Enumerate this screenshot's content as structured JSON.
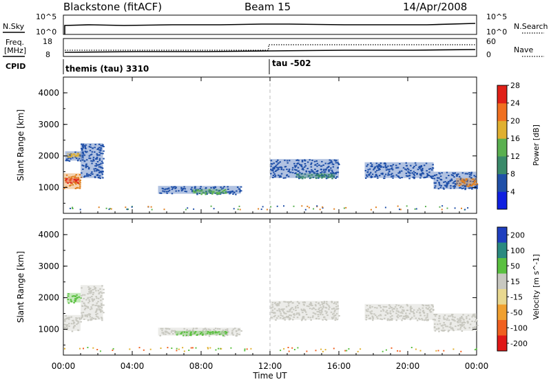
{
  "header": {
    "station": "Blackstone (fitACF)",
    "beam": "Beam 15",
    "date": "14/Apr/2008"
  },
  "status_panels": {
    "nsky_label": "N.Sky",
    "nsky_ticks": [
      "10^5",
      "10^0"
    ],
    "nsearch_label": "N.Search",
    "nsearch_ticks": [
      "10^5",
      "10^0"
    ],
    "freq_label_1": "Freq.",
    "freq_label_2": "[MHz]",
    "freq_ticks": [
      "18",
      "8"
    ],
    "nave_label": "Nave",
    "nave_ticks": [
      "60",
      "0"
    ],
    "cpid_label": "CPID",
    "cpid_segments": [
      {
        "text": "themis (tau) 3310",
        "start": 0
      },
      {
        "text": "tau -502",
        "start": 12
      }
    ]
  },
  "chart_data": [
    {
      "type": "heatmap",
      "name": "power-panel",
      "xlabel": "",
      "ylabel": "Slant Range [km]",
      "xlim": [
        0,
        24
      ],
      "ylim": [
        180,
        4500
      ],
      "yticks": [
        "1000",
        "2000",
        "3000",
        "4000"
      ],
      "colorbar": {
        "label": "Power [dB]",
        "ticks": [
          "4",
          "8",
          "12",
          "16",
          "20",
          "24",
          "28"
        ],
        "colors": [
          "#1020e0",
          "#2050a8",
          "#3a8a6a",
          "#5ab050",
          "#e0b030",
          "#f07020",
          "#e02018"
        ]
      },
      "regions": [
        {
          "t": [
            0.0,
            1.0
          ],
          "r": [
            950,
            1450
          ],
          "color": "#e08020"
        },
        {
          "t": [
            0.1,
            0.9
          ],
          "r": [
            1150,
            1300
          ],
          "color": "#e02018"
        },
        {
          "t": [
            0.1,
            1.2
          ],
          "r": [
            1850,
            2150
          ],
          "color": "#2050a8"
        },
        {
          "t": [
            0.2,
            1.0
          ],
          "r": [
            1950,
            2100
          ],
          "color": "#e0b030"
        },
        {
          "t": [
            1.0,
            2.3
          ],
          "r": [
            1300,
            2400
          ],
          "color": "#2050a8"
        },
        {
          "t": [
            5.5,
            10.3
          ],
          "r": [
            800,
            1050
          ],
          "color": "#2050a8"
        },
        {
          "t": [
            7.5,
            9.5
          ],
          "r": [
            800,
            950
          ],
          "color": "#5ab050"
        },
        {
          "t": [
            12.0,
            16.0
          ],
          "r": [
            1300,
            1900
          ],
          "color": "#2050a8"
        },
        {
          "t": [
            13.5,
            15.8
          ],
          "r": [
            1300,
            1450
          ],
          "color": "#3a8a6a"
        },
        {
          "t": [
            17.5,
            21.5
          ],
          "r": [
            1300,
            1800
          ],
          "color": "#2050a8"
        },
        {
          "t": [
            21.5,
            24.0
          ],
          "r": [
            950,
            1500
          ],
          "color": "#2050a8"
        },
        {
          "t": [
            22.8,
            24.0
          ],
          "r": [
            1050,
            1300
          ],
          "color": "#e08020"
        }
      ]
    },
    {
      "type": "heatmap",
      "name": "velocity-panel",
      "xlabel": "Time UT",
      "ylabel": "Slant Range [km]",
      "xlim": [
        0,
        24
      ],
      "ylim": [
        180,
        4500
      ],
      "xticks": [
        "00:00",
        "04:00",
        "08:00",
        "12:00",
        "16:00",
        "20:00",
        "00:00"
      ],
      "yticks": [
        "1000",
        "2000",
        "3000",
        "4000"
      ],
      "colorbar": {
        "label": "Velocity [m s^-1]",
        "ticks": [
          "200",
          "100",
          "50",
          "15",
          "-15",
          "-50",
          "-100",
          "-200"
        ],
        "colors": [
          "#1f3fbf",
          "#2a8a80",
          "#5ac040",
          "#c8c8c0",
          "#e8d890",
          "#f0a030",
          "#f06020",
          "#e01818"
        ]
      },
      "regions": [
        {
          "t": [
            0.0,
            1.0
          ],
          "r": [
            950,
            1450
          ],
          "color": "#c8c8c0"
        },
        {
          "t": [
            0.2,
            1.0
          ],
          "r": [
            1850,
            2150
          ],
          "color": "#5ac040"
        },
        {
          "t": [
            1.0,
            2.3
          ],
          "r": [
            1300,
            2400
          ],
          "color": "#c8c8c0"
        },
        {
          "t": [
            5.5,
            10.3
          ],
          "r": [
            800,
            1050
          ],
          "color": "#c8c8c0"
        },
        {
          "t": [
            6.5,
            9.5
          ],
          "r": [
            820,
            950
          ],
          "color": "#5ac040"
        },
        {
          "t": [
            12.0,
            16.0
          ],
          "r": [
            1300,
            1900
          ],
          "color": "#c8c8c0"
        },
        {
          "t": [
            17.5,
            21.5
          ],
          "r": [
            1300,
            1800
          ],
          "color": "#c8c8c0"
        },
        {
          "t": [
            21.5,
            24.0
          ],
          "r": [
            950,
            1500
          ],
          "color": "#c8c8c0"
        }
      ]
    }
  ]
}
